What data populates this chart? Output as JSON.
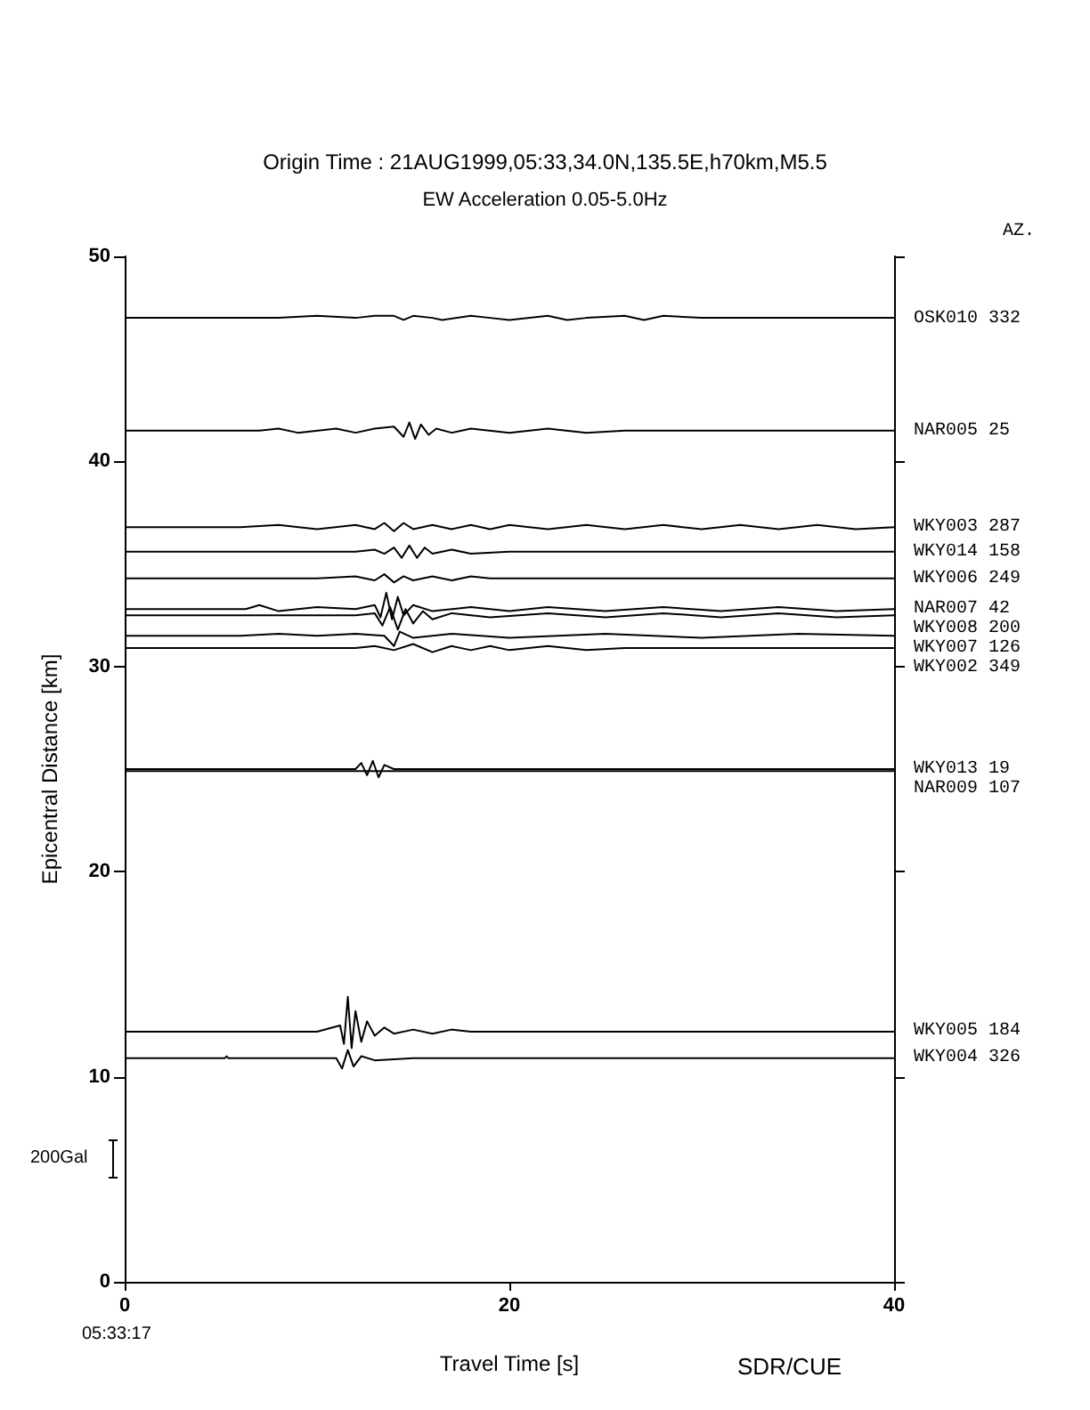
{
  "chart_data": {
    "type": "line",
    "title": "Origin Time : 21AUG1999,05:33,34.0N,135.5E,h70km,M5.5",
    "subtitle": "EW Acceleration 0.05-5.0Hz",
    "xlabel": "Travel Time [s]",
    "ylabel": "Epicentral Distance [km]",
    "xlim": [
      0,
      40
    ],
    "xticks": [
      0,
      20,
      40
    ],
    "ylim": [
      0,
      50
    ],
    "yticks": [
      0,
      10,
      20,
      30,
      40,
      50
    ],
    "grid": false,
    "legend": "right",
    "marker": "none",
    "line_style": "solid",
    "annotations": [
      "AZ.",
      "05:33:17",
      "SDR/CUE",
      "200Gal"
    ],
    "series": [
      {
        "name": "OSK010 332",
        "color": "#000000",
        "x": [
          0,
          8,
          10,
          12,
          13,
          14,
          14.5,
          15,
          16,
          16.5,
          18,
          19,
          20,
          22,
          23,
          24,
          26,
          27,
          28,
          30,
          32,
          40
        ],
        "values": [
          47.0,
          47.0,
          47.1,
          47.0,
          47.1,
          47.1,
          46.9,
          47.1,
          47.0,
          46.9,
          47.1,
          47.0,
          46.9,
          47.1,
          46.9,
          47.0,
          47.1,
          46.9,
          47.1,
          47.0,
          47.0,
          47.0
        ]
      },
      {
        "name": "NAR005 25",
        "color": "#000000",
        "x": [
          0,
          7,
          8,
          9,
          11,
          12,
          13,
          14,
          14.5,
          14.8,
          15.1,
          15.4,
          15.8,
          16.2,
          17,
          18,
          20,
          22,
          24,
          26,
          40
        ],
        "values": [
          41.5,
          41.5,
          41.6,
          41.4,
          41.6,
          41.4,
          41.6,
          41.7,
          41.2,
          41.9,
          41.1,
          41.8,
          41.3,
          41.6,
          41.4,
          41.6,
          41.4,
          41.6,
          41.4,
          41.5,
          41.5
        ]
      },
      {
        "name": "WKY003 287",
        "color": "#000000",
        "x": [
          0,
          6,
          8,
          10,
          12,
          13,
          13.5,
          14,
          14.5,
          15,
          16,
          17,
          18,
          19,
          20,
          22,
          24,
          26,
          28,
          30,
          32,
          34,
          36,
          38,
          40
        ],
        "values": [
          36.8,
          36.8,
          36.9,
          36.7,
          36.9,
          36.7,
          37.0,
          36.6,
          37.0,
          36.7,
          36.9,
          36.7,
          36.9,
          36.7,
          36.9,
          36.7,
          36.9,
          36.7,
          36.9,
          36.7,
          36.9,
          36.7,
          36.9,
          36.7,
          36.8
        ]
      },
      {
        "name": "WKY014 158",
        "color": "#000000",
        "x": [
          0,
          12,
          13,
          13.5,
          14,
          14.4,
          14.8,
          15.2,
          15.6,
          16,
          17,
          18,
          20,
          40
        ],
        "values": [
          35.6,
          35.6,
          35.7,
          35.5,
          35.8,
          35.3,
          35.9,
          35.3,
          35.8,
          35.5,
          35.7,
          35.5,
          35.6,
          35.6
        ]
      },
      {
        "name": "WKY006 249",
        "color": "#000000",
        "x": [
          0,
          10,
          12,
          13,
          13.5,
          14,
          14.5,
          15,
          16,
          17,
          18,
          19,
          40
        ],
        "values": [
          34.3,
          34.3,
          34.4,
          34.2,
          34.5,
          34.1,
          34.4,
          34.2,
          34.4,
          34.2,
          34.4,
          34.3,
          34.3
        ]
      },
      {
        "name": "NAR007 42",
        "color": "#000000",
        "x": [
          0,
          6.3,
          7,
          8,
          10,
          12,
          13,
          13.3,
          13.6,
          13.9,
          14.2,
          14.5,
          15,
          16,
          18,
          20,
          22,
          25,
          28,
          31,
          34,
          37,
          40
        ],
        "values": [
          32.8,
          32.8,
          33.0,
          32.7,
          32.9,
          32.8,
          33.0,
          32.4,
          33.6,
          32.3,
          33.4,
          32.5,
          33.0,
          32.7,
          32.9,
          32.7,
          32.9,
          32.7,
          32.9,
          32.7,
          32.9,
          32.7,
          32.8
        ]
      },
      {
        "name": "WKY008 200",
        "color": "#000000",
        "x": [
          0,
          12,
          13,
          13.4,
          13.8,
          14.2,
          14.6,
          15,
          15.5,
          16,
          17,
          19,
          22,
          25,
          28,
          31,
          34,
          37,
          40
        ],
        "values": [
          32.5,
          32.5,
          32.6,
          32.0,
          32.9,
          31.8,
          32.8,
          32.1,
          32.7,
          32.3,
          32.6,
          32.4,
          32.6,
          32.4,
          32.6,
          32.4,
          32.6,
          32.4,
          32.5
        ]
      },
      {
        "name": "WKY007 126",
        "color": "#000000",
        "x": [
          0,
          6,
          8,
          10,
          12,
          13.5,
          14,
          14.3,
          15,
          17,
          20,
          25,
          30,
          35,
          40
        ],
        "values": [
          31.5,
          31.5,
          31.6,
          31.5,
          31.6,
          31.5,
          31.0,
          31.7,
          31.4,
          31.6,
          31.4,
          31.6,
          31.4,
          31.6,
          31.5
        ]
      },
      {
        "name": "WKY002 349",
        "color": "#000000",
        "x": [
          0,
          12,
          13,
          14,
          15,
          16,
          17,
          18,
          19,
          20,
          22,
          24,
          26,
          40
        ],
        "values": [
          30.9,
          30.9,
          31.0,
          30.8,
          31.1,
          30.7,
          31.0,
          30.8,
          31.0,
          30.8,
          31.0,
          30.8,
          30.9,
          30.9
        ]
      },
      {
        "name": "WKY013 19",
        "color": "#000000",
        "x": [
          0,
          12,
          12.3,
          12.6,
          12.9,
          13.2,
          13.5,
          14,
          40
        ],
        "values": [
          25.0,
          25.0,
          25.3,
          24.7,
          25.4,
          24.6,
          25.2,
          25.0,
          25.0
        ]
      },
      {
        "name": "NAR009 107",
        "color": "#000000",
        "x": [
          0,
          40
        ],
        "values": [
          24.9,
          24.9
        ]
      },
      {
        "name": "WKY005 184",
        "color": "#000000",
        "x": [
          0,
          10,
          11.2,
          11.4,
          11.6,
          11.8,
          12.0,
          12.3,
          12.6,
          13,
          13.5,
          14,
          15,
          16,
          17,
          18,
          40
        ],
        "values": [
          12.2,
          12.2,
          12.5,
          11.6,
          13.9,
          11.4,
          13.2,
          11.7,
          12.7,
          12.0,
          12.4,
          12.1,
          12.3,
          12.1,
          12.3,
          12.2,
          12.2
        ]
      },
      {
        "name": "WKY004 326",
        "color": "#000000",
        "x": [
          0,
          5.2,
          5.3,
          5.4,
          11,
          11.3,
          11.6,
          11.9,
          12.3,
          13,
          15,
          40
        ],
        "values": [
          10.9,
          10.9,
          11.0,
          10.9,
          10.9,
          10.4,
          11.3,
          10.5,
          11.0,
          10.8,
          10.9,
          10.9
        ]
      }
    ]
  }
}
